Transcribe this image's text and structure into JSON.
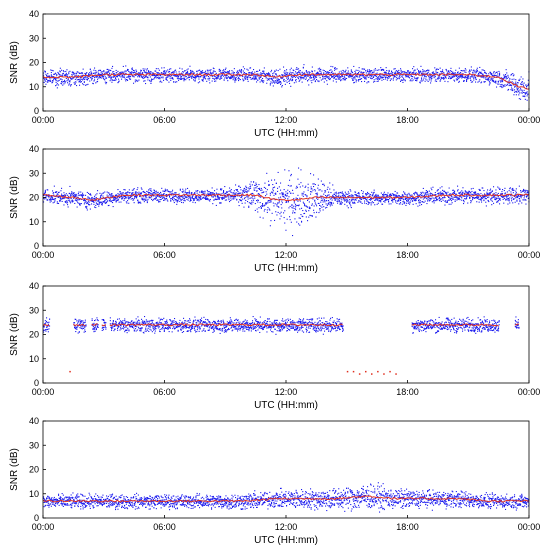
{
  "chart_data": [
    {
      "type": "scatter",
      "xlabel": "UTC (HH:mm)",
      "ylabel": "SNR (dB)",
      "ylim": [
        0,
        40
      ],
      "xlim_hours": [
        0,
        24
      ],
      "xticks": [
        "00:00",
        "06:00",
        "12:00",
        "18:00",
        "00:00"
      ],
      "yticks": [
        "0",
        "10",
        "20",
        "30",
        "40"
      ],
      "series": [
        {
          "color": "#1a1aee",
          "x_hours": [
            0,
            1.5,
            3,
            4.5,
            6,
            7.5,
            9,
            10.5,
            11.5,
            12.5,
            13.5,
            15,
            16.5,
            18,
            19.5,
            21,
            22.5,
            23.5,
            24
          ],
          "y_mean": [
            14,
            14,
            15,
            15,
            15,
            15,
            15,
            15,
            14,
            15,
            15,
            15,
            15,
            15,
            15,
            15,
            14,
            10,
            9
          ],
          "y_spread": [
            2.5,
            3,
            2.5,
            2.5,
            2.5,
            2.5,
            2.5,
            2.5,
            3,
            3,
            3,
            2.5,
            2.5,
            2.5,
            2.5,
            2.5,
            3,
            5,
            5
          ]
        },
        {
          "color": "#e03020",
          "x_hours": [
            0,
            1.5,
            3,
            4.5,
            6,
            7.5,
            9,
            10.5,
            11.5,
            12.5,
            13.5,
            15,
            16.5,
            18,
            19.5,
            21,
            22.5,
            23.5,
            24
          ],
          "y": [
            14,
            14,
            15,
            15,
            15,
            15,
            15,
            15,
            14,
            15,
            15,
            15,
            15,
            15,
            15,
            15,
            14,
            10,
            9
          ]
        }
      ]
    },
    {
      "type": "scatter",
      "xlabel": "UTC (HH:mm)",
      "ylabel": "SNR (dB)",
      "ylim": [
        0,
        40
      ],
      "xlim_hours": [
        0,
        24
      ],
      "xticks": [
        "00:00",
        "06:00",
        "12:00",
        "18:00",
        "00:00"
      ],
      "yticks": [
        "0",
        "10",
        "20",
        "30",
        "40"
      ],
      "series": [
        {
          "color": "#1a1aee",
          "x_hours": [
            0,
            1.5,
            2.5,
            4,
            6,
            8,
            9.5,
            10.5,
            11.5,
            12.5,
            13.5,
            14.5,
            16,
            18,
            20,
            22,
            23,
            24
          ],
          "y_mean": [
            21,
            20,
            19,
            21,
            21,
            21,
            21,
            21,
            19,
            19,
            20,
            20,
            20,
            20,
            21,
            21,
            21,
            21
          ],
          "y_spread": [
            2.5,
            3,
            3,
            2.5,
            2.5,
            2.5,
            3,
            6,
            9,
            10,
            8,
            3,
            2.5,
            2.5,
            3,
            3,
            3,
            2.5
          ]
        },
        {
          "color": "#e03020",
          "x_hours": [
            0,
            1.5,
            2.5,
            4,
            6,
            8,
            9.5,
            10.5,
            11.5,
            12.5,
            13.5,
            14.5,
            16,
            18,
            20,
            22,
            23,
            24
          ],
          "y": [
            21,
            20,
            19,
            21,
            21,
            21,
            21,
            21,
            19,
            19,
            20,
            20,
            20,
            20,
            21,
            21,
            21,
            21
          ]
        }
      ]
    },
    {
      "type": "scatter",
      "xlabel": "UTC (HH:mm)",
      "ylabel": "SNR (dB)",
      "ylim": [
        0,
        40
      ],
      "xlim_hours": [
        0,
        24
      ],
      "xticks": [
        "00:00",
        "06:00",
        "12:00",
        "18:00",
        "00:00"
      ],
      "yticks": [
        "0",
        "10",
        "20",
        "30",
        "40"
      ],
      "segments_hours": [
        [
          0,
          0.3
        ],
        [
          1.5,
          2.1
        ],
        [
          2.4,
          2.7
        ],
        [
          2.9,
          3.1
        ],
        [
          3.3,
          14.8
        ],
        [
          18.2,
          22.5
        ],
        [
          23.3,
          23.5
        ]
      ],
      "series": [
        {
          "color": "#1a1aee",
          "y_mean": 24,
          "y_spread": 2.5
        },
        {
          "color": "#e03020",
          "y": 24
        }
      ],
      "outliers": {
        "color": "#e03020",
        "x_hours": [
          15.0,
          15.3,
          15.6,
          15.9,
          16.2,
          16.5,
          16.8,
          17.1,
          17.4,
          1.3
        ],
        "y": [
          5,
          5,
          4,
          5,
          4,
          5,
          4,
          5,
          4,
          5
        ]
      }
    },
    {
      "type": "scatter",
      "xlabel": "UTC (HH:mm)",
      "ylabel": "SNR (dB)",
      "ylim": [
        0,
        40
      ],
      "xlim_hours": [
        0,
        24
      ],
      "xticks": [
        "00:00",
        "06:00",
        "12:00",
        "18:00",
        "00:00"
      ],
      "yticks": [
        "0",
        "10",
        "20",
        "30",
        "40"
      ],
      "series": [
        {
          "color": "#1a1aee",
          "x_hours": [
            0,
            2,
            4,
            6,
            8,
            10,
            11.5,
            13,
            14.5,
            16,
            17.5,
            19,
            20.5,
            22,
            23,
            24
          ],
          "y_mean": [
            7,
            7,
            7,
            7,
            7,
            7,
            8,
            8,
            8,
            9,
            8,
            8,
            8,
            7,
            7,
            7
          ],
          "y_spread": [
            2.5,
            2.5,
            2.5,
            2.5,
            2.5,
            3,
            3,
            3.5,
            4,
            4.5,
            3.5,
            3,
            3,
            2.5,
            2.5,
            2.5
          ]
        },
        {
          "color": "#e03020",
          "x_hours": [
            0,
            2,
            4,
            6,
            8,
            10,
            11.5,
            13,
            14.5,
            16,
            17.5,
            19,
            20.5,
            22,
            23,
            24
          ],
          "y": [
            7,
            7,
            7,
            7,
            7,
            7,
            8,
            8,
            8,
            9,
            8,
            8,
            8,
            7,
            7,
            7
          ]
        }
      ]
    }
  ]
}
